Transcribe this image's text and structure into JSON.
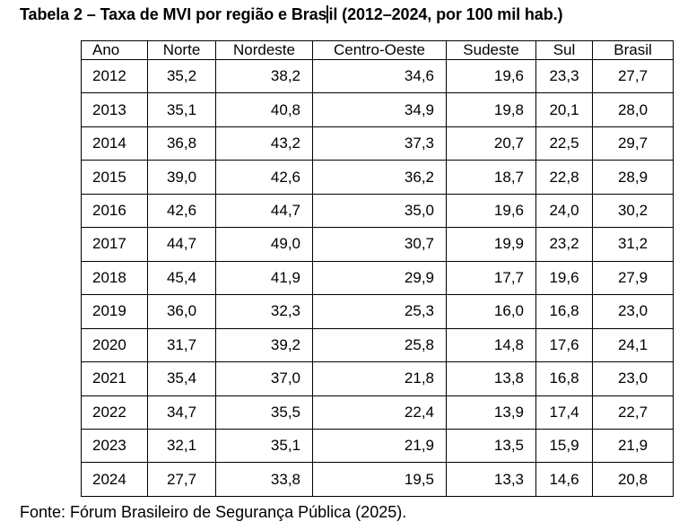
{
  "title": {
    "text_before_cursor": "Tabela 2 – Taxa de MVI por região e Bras",
    "text_after_cursor": "il (2012–2024, por 100 mil hab.)"
  },
  "table": {
    "columns": [
      {
        "label": "Ano"
      },
      {
        "label": "Norte"
      },
      {
        "label": "Nordeste"
      },
      {
        "label": "Centro-Oeste"
      },
      {
        "label": "Sudeste"
      },
      {
        "label": "Sul"
      },
      {
        "label": "Brasil"
      }
    ],
    "rows": [
      [
        "2012",
        "35,2",
        "38,2",
        "34,6",
        "19,6",
        "23,3",
        "27,7"
      ],
      [
        "2013",
        "35,1",
        "40,8",
        "34,9",
        "19,8",
        "20,1",
        "28,0"
      ],
      [
        "2014",
        "36,8",
        "43,2",
        "37,3",
        "20,7",
        "22,5",
        "29,7"
      ],
      [
        "2015",
        "39,0",
        "42,6",
        "36,2",
        "18,7",
        "22,8",
        "28,9"
      ],
      [
        "2016",
        "42,6",
        "44,7",
        "35,0",
        "19,6",
        "24,0",
        "30,2"
      ],
      [
        "2017",
        "44,7",
        "49,0",
        "30,7",
        "19,9",
        "23,2",
        "31,2"
      ],
      [
        "2018",
        "45,4",
        "41,9",
        "29,9",
        "17,7",
        "19,6",
        "27,9"
      ],
      [
        "2019",
        "36,0",
        "32,3",
        "25,3",
        "16,0",
        "16,8",
        "23,0"
      ],
      [
        "2020",
        "31,7",
        "39,2",
        "25,8",
        "14,8",
        "17,6",
        "24,1"
      ],
      [
        "2021",
        "35,4",
        "37,0",
        "21,8",
        "13,8",
        "16,8",
        "23,0"
      ],
      [
        "2022",
        "34,7",
        "35,5",
        "22,4",
        "13,9",
        "17,4",
        "22,7"
      ],
      [
        "2023",
        "32,1",
        "35,1",
        "21,9",
        "13,5",
        "15,9",
        "21,9"
      ],
      [
        "2024",
        "27,7",
        "33,8",
        "19,5",
        "13,3",
        "14,6",
        "20,8"
      ]
    ]
  },
  "source_note": "Fonte: Fórum Brasileiro de Segurança Pública (2025)."
}
